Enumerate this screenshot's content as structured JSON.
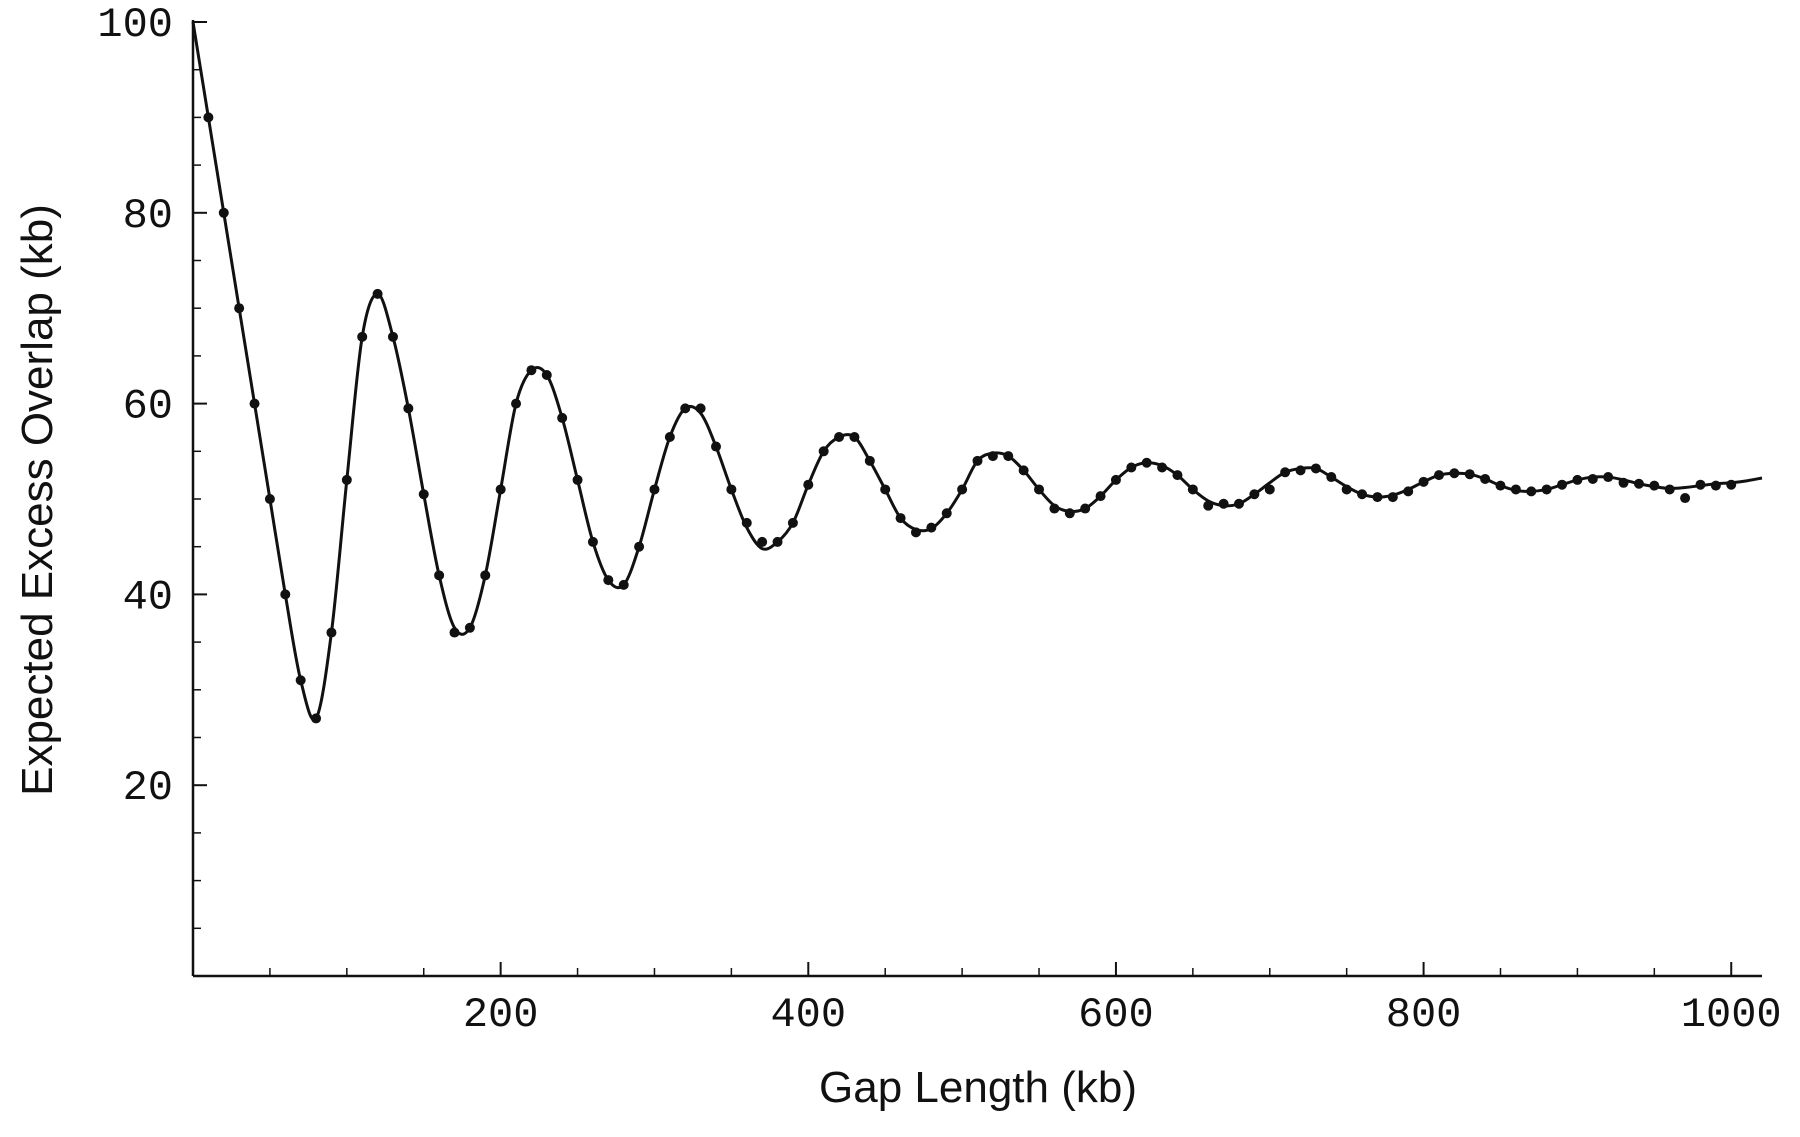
{
  "chart_data": {
    "type": "line",
    "x_label": "Gap Length (kb)",
    "y_label": "Expected Excess Overlap (kb)",
    "xlim": [
      0,
      1020
    ],
    "ylim": [
      0,
      100
    ],
    "xticks": [
      200,
      400,
      600,
      800,
      1000
    ],
    "yticks": [
      20,
      40,
      60,
      80,
      100
    ],
    "xminorticks": [
      50,
      100,
      150,
      250,
      300,
      350,
      450,
      500,
      550,
      650,
      700,
      750,
      850,
      900,
      950
    ],
    "yminorticks": [
      5,
      10,
      15,
      25,
      30,
      35,
      45,
      50,
      55,
      65,
      70,
      75,
      85,
      90,
      95
    ],
    "color": "#111111",
    "series": [
      {
        "markers": false,
        "x": [
          0,
          10,
          20,
          30,
          40,
          50,
          60,
          70,
          80,
          90,
          100,
          110,
          120,
          130,
          140,
          150,
          160,
          170,
          180,
          190,
          200,
          210,
          220,
          230,
          240,
          250,
          260,
          270,
          280,
          290,
          300,
          310,
          320,
          330,
          340,
          350,
          360,
          370,
          380,
          390,
          400,
          410,
          420,
          430,
          440,
          450,
          460,
          470,
          480,
          490,
          500,
          510,
          520,
          530,
          540,
          550,
          560,
          570,
          580,
          590,
          600,
          610,
          620,
          630,
          640,
          650,
          660,
          670,
          680,
          690,
          700,
          710,
          720,
          730,
          740,
          750,
          760,
          770,
          780,
          790,
          800,
          810,
          820,
          830,
          840,
          850,
          860,
          870,
          880,
          890,
          900,
          910,
          920,
          930,
          940,
          950,
          960,
          970,
          980,
          990,
          1000,
          1010,
          1020
        ],
        "values": [
          100,
          90,
          80,
          70,
          60,
          50,
          40,
          31,
          27,
          36,
          52,
          67,
          71.5,
          67,
          59.5,
          50.5,
          42,
          36.5,
          36.5,
          42,
          51,
          60,
          63.5,
          63,
          58.5,
          52,
          45.5,
          41.5,
          41,
          45,
          51,
          56.5,
          59.5,
          59,
          55.5,
          51,
          47,
          44.8,
          45.5,
          47.5,
          51.5,
          55,
          56.5,
          56.5,
          54,
          51,
          48,
          46.8,
          46.9,
          48.5,
          51,
          54,
          54.8,
          54.5,
          53,
          51,
          49.3,
          48.7,
          49,
          50.3,
          52,
          53.3,
          53.8,
          53.5,
          52.5,
          51,
          49.8,
          49.3,
          49.5,
          50.5,
          51.7,
          52.8,
          53.2,
          53.2,
          52.3,
          51.3,
          50.5,
          50.2,
          50.4,
          51,
          51.8,
          52.5,
          52.7,
          52.6,
          52.1,
          51.4,
          50.9,
          50.8,
          51,
          51.5,
          52,
          52.3,
          52.3,
          52,
          51.6,
          51.3,
          51.1,
          51.2,
          51.4,
          51.6,
          51.7,
          51.9,
          52.2
        ]
      },
      {
        "markers": true,
        "x": [
          10,
          20,
          30,
          40,
          50,
          60,
          70,
          80,
          90,
          100,
          110,
          120,
          130,
          140,
          150,
          160,
          170,
          180,
          190,
          200,
          210,
          220,
          230,
          240,
          250,
          260,
          270,
          280,
          290,
          300,
          310,
          320,
          330,
          340,
          350,
          360,
          370,
          380,
          390,
          400,
          410,
          420,
          430,
          440,
          450,
          460,
          470,
          480,
          490,
          500,
          510,
          520,
          530,
          540,
          550,
          560,
          570,
          580,
          590,
          600,
          610,
          620,
          630,
          640,
          650,
          660,
          670,
          680,
          690,
          700,
          710,
          720,
          730,
          740,
          750,
          760,
          770,
          780,
          790,
          800,
          810,
          820,
          830,
          840,
          850,
          860,
          870,
          880,
          890,
          900,
          910,
          920,
          930,
          940,
          950,
          960,
          970,
          980,
          990,
          1000
        ],
        "values": [
          90,
          80,
          70,
          60,
          50,
          40,
          31,
          27,
          36,
          52,
          67,
          71.5,
          67,
          59.5,
          50.5,
          42,
          36,
          36.5,
          42,
          51,
          60,
          63.5,
          63,
          58.5,
          52,
          45.5,
          41.5,
          41,
          45,
          51,
          56.5,
          59.5,
          59.5,
          55.5,
          51,
          47.5,
          45.5,
          45.5,
          47.5,
          51.5,
          55,
          56.5,
          56.5,
          54,
          51,
          48,
          46.5,
          47,
          48.5,
          51,
          54,
          54.5,
          54.5,
          53,
          51,
          49,
          48.5,
          49,
          50.3,
          52,
          53.3,
          53.8,
          53.3,
          52.5,
          51,
          49.3,
          49.5,
          49.5,
          50.5,
          51,
          52.8,
          53,
          53.2,
          52.3,
          51,
          50.5,
          50.2,
          50.2,
          50.8,
          51.8,
          52.5,
          52.7,
          52.6,
          52.1,
          51.4,
          51,
          50.8,
          51,
          51.5,
          52,
          52.1,
          52.3,
          51.7,
          51.6,
          51.4,
          51,
          50.1,
          51.5,
          51.4,
          51.5
        ]
      }
    ]
  }
}
